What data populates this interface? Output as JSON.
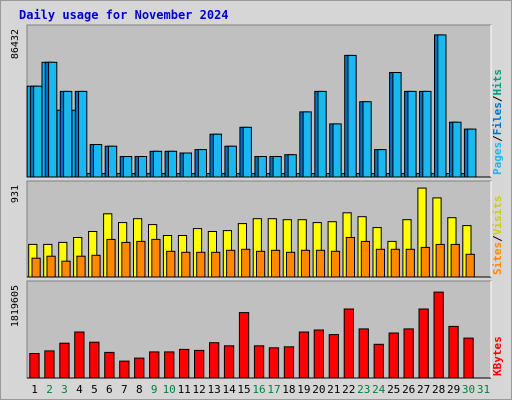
{
  "colors": {
    "frame_bg": "#d6d6d6",
    "panel_bg": "#c0c0c0",
    "title": "#0000cc",
    "pages": "#1ab8f0",
    "files": "#0072c6",
    "hits": "#00b0f0",
    "visits": "#ffff00",
    "sites": "#ff8800",
    "kbytes": "#ff0000",
    "weekday_label": "#000000",
    "weekend_label": "#008040"
  },
  "chart_data": {
    "type": "bar",
    "title": "Daily usage for November 2024",
    "categories": [
      "1",
      "2",
      "3",
      "4",
      "5",
      "6",
      "7",
      "8",
      "9",
      "10",
      "11",
      "12",
      "13",
      "14",
      "15",
      "16",
      "17",
      "18",
      "19",
      "20",
      "21",
      "22",
      "23",
      "24",
      "25",
      "26",
      "27",
      "28",
      "29",
      "30",
      "31"
    ],
    "weekend_days": [
      "2",
      "3",
      "9",
      "10",
      "16",
      "17",
      "23",
      "24",
      "30",
      "31"
    ],
    "panels": [
      {
        "ylabel_parts": [
          "Pages",
          "Files",
          "Hits"
        ],
        "ylabel_separator": "/",
        "max_label": "86432",
        "ylim": [
          0,
          86432
        ],
        "series": [
          {
            "name": "Hits",
            "color_key": "hits",
            "values": [
              53000,
              67000,
              39000,
              39000,
              2000,
              2000,
              2000,
              2000,
              2000,
              2000,
              2000,
              2000,
              2000,
              2000,
              2000,
              2000,
              2000,
              2000,
              2000,
              2000,
              2000,
              2000,
              2000,
              2000,
              2000,
              2000,
              2000,
              2000,
              2000,
              2000,
              0
            ]
          },
          {
            "name": "Files",
            "color_key": "files",
            "values": [
              53000,
              67000,
              50000,
              50000,
              19000,
              18000,
              12000,
              12000,
              15000,
              15000,
              14000,
              16000,
              25000,
              18000,
              29000,
              12000,
              12000,
              13000,
              38000,
              50000,
              31000,
              71000,
              44000,
              16000,
              61000,
              50000,
              50000,
              83000,
              32000,
              28000,
              0
            ]
          },
          {
            "name": "Pages",
            "color_key": "pages",
            "values": [
              53000,
              67000,
              50000,
              50000,
              19000,
              18000,
              12000,
              12000,
              15000,
              15000,
              14000,
              16000,
              25000,
              18000,
              29000,
              12000,
              12000,
              13000,
              38000,
              50000,
              31000,
              71000,
              44000,
              16000,
              61000,
              50000,
              50000,
              83000,
              32000,
              28000,
              0
            ]
          }
        ]
      },
      {
        "ylabel_parts": [
          "Sites",
          "Visits"
        ],
        "ylabel_separator": "/",
        "max_label": "931",
        "ylim": [
          0,
          931
        ],
        "series": [
          {
            "name": "Visits",
            "color_key": "visits",
            "values": [
              330,
              330,
              350,
              400,
              460,
              640,
              550,
              590,
              530,
              420,
              420,
              490,
              460,
              470,
              540,
              590,
              590,
              580,
              580,
              550,
              560,
              650,
              610,
              500,
              360,
              580,
              900,
              800,
              600,
              520,
              0
            ]
          },
          {
            "name": "Sites",
            "color_key": "sites",
            "values": [
              190,
              210,
              160,
              210,
              220,
              380,
              350,
              360,
              380,
              260,
              250,
              250,
              250,
              270,
              280,
              260,
              270,
              250,
              270,
              270,
              260,
              400,
              360,
              280,
              280,
              280,
              300,
              330,
              330,
              230,
              0
            ]
          }
        ]
      },
      {
        "ylabel_parts": [
          "KBytes"
        ],
        "ylabel_separator": "",
        "max_label": "1819605",
        "ylim": [
          0,
          1819605
        ],
        "series": [
          {
            "name": "KBytes",
            "color_key": "kbytes",
            "values": [
              480000,
              530000,
              680000,
              900000,
              700000,
              500000,
              330000,
              390000,
              510000,
              510000,
              560000,
              540000,
              690000,
              630000,
              1280000,
              630000,
              590000,
              610000,
              900000,
              940000,
              850000,
              1350000,
              960000,
              660000,
              880000,
              960000,
              1350000,
              1680000,
              1010000,
              780000,
              0
            ]
          }
        ]
      }
    ]
  }
}
